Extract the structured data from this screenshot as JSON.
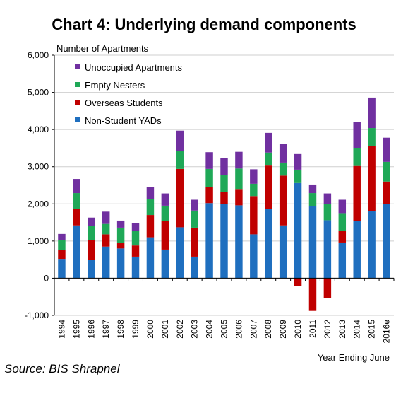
{
  "title": "Chart 4: Underlying demand components",
  "source": "Source: BIS Shrapnel",
  "chart_data": {
    "type": "bar",
    "stacked": true,
    "title": "Chart 4: Underlying demand components",
    "ylabel": "Number of Apartments",
    "xlabel": "Year Ending June",
    "ylim": [
      -1000,
      6000
    ],
    "yticks": [
      -1000,
      0,
      1000,
      2000,
      3000,
      4000,
      5000,
      6000
    ],
    "ytick_labels": [
      "-1,000",
      "0",
      "1,000",
      "2,000",
      "3,000",
      "4,000",
      "5,000",
      "6,000"
    ],
    "legend_position": "top-left",
    "categories": [
      "1994",
      "1995",
      "1996",
      "1997",
      "1998",
      "1999",
      "2000",
      "2001",
      "2002",
      "2003",
      "2004",
      "2005",
      "2006",
      "2007",
      "2008",
      "2009",
      "2010",
      "2011",
      "2012",
      "2013",
      "2014",
      "2015",
      "2016e"
    ],
    "series": [
      {
        "name": "Non-Student YADs",
        "color": "#1f6fbf",
        "values": [
          520,
          1420,
          500,
          850,
          800,
          580,
          1100,
          770,
          1370,
          580,
          2020,
          2000,
          1960,
          1180,
          1870,
          1420,
          2560,
          1940,
          1560,
          960,
          1540,
          1800,
          2000
        ]
      },
      {
        "name": "Overseas Students",
        "color": "#c00000",
        "values": [
          240,
          450,
          520,
          330,
          140,
          300,
          600,
          760,
          1570,
          780,
          440,
          320,
          440,
          1030,
          1160,
          1340,
          -220,
          -880,
          -540,
          320,
          1480,
          1750,
          600
        ]
      },
      {
        "name": "Empty Nesters",
        "color": "#1fa857",
        "values": [
          270,
          420,
          380,
          280,
          420,
          400,
          420,
          420,
          480,
          460,
          480,
          460,
          550,
          330,
          350,
          350,
          360,
          350,
          440,
          470,
          480,
          490,
          530
        ]
      },
      {
        "name": "Unoccupied Apartments",
        "color": "#7030a0",
        "values": [
          160,
          380,
          230,
          330,
          190,
          200,
          340,
          330,
          550,
          290,
          450,
          450,
          450,
          390,
          530,
          500,
          420,
          230,
          280,
          360,
          710,
          820,
          650
        ]
      }
    ]
  }
}
